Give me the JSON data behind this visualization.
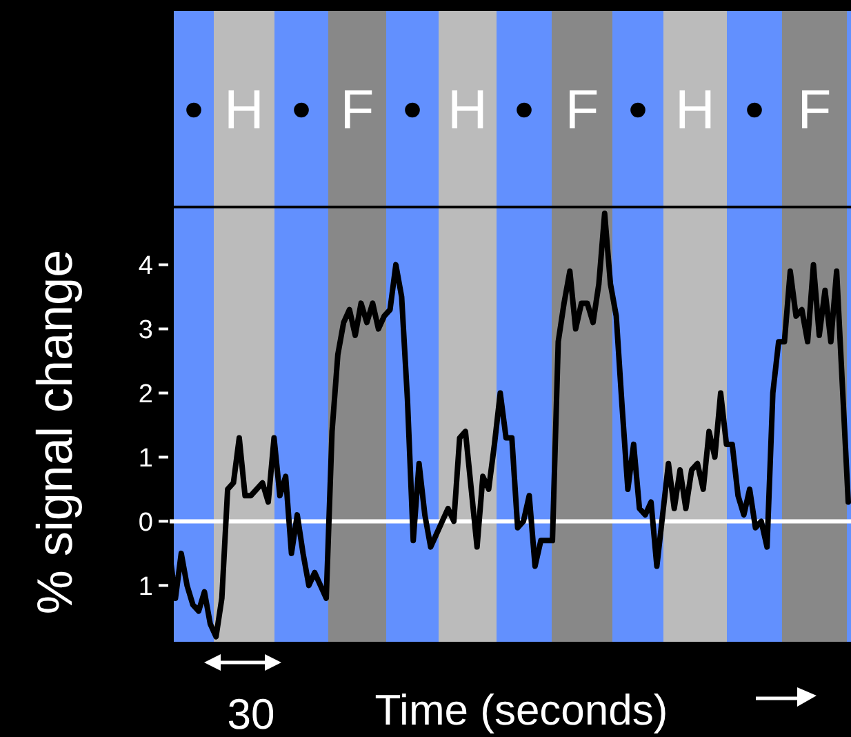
{
  "chart_data": {
    "type": "line",
    "xlabel": "Time (seconds)",
    "ylabel": "% signal change",
    "annotations": [
      "•",
      "H",
      "•",
      "F",
      "•",
      "H",
      "•",
      "F",
      "•",
      "H",
      "•",
      "F",
      "30"
    ],
    "categories": [
      null,
      null,
      null,
      null,
      null,
      null,
      null,
      null,
      null,
      null,
      null,
      null,
      null,
      null,
      null,
      null,
      null,
      null,
      null,
      null,
      null,
      null,
      null,
      null,
      null,
      null,
      null,
      null,
      null,
      null,
      null,
      null,
      null,
      null,
      null,
      null,
      null,
      null,
      null,
      null,
      null,
      null,
      null,
      null,
      null,
      null,
      null,
      null,
      null,
      null,
      null,
      null,
      null,
      null,
      null,
      null,
      null,
      null,
      null,
      null,
      null,
      null,
      null,
      null,
      null,
      null,
      null,
      null,
      null,
      null,
      null,
      null,
      null,
      null,
      null,
      null,
      null,
      null,
      null,
      null,
      null,
      null,
      null,
      null,
      null,
      null,
      null,
      null,
      null,
      null,
      null,
      null,
      null,
      null,
      null,
      null,
      null,
      null,
      null,
      null,
      null,
      null,
      null,
      null,
      null,
      null,
      null,
      null,
      null,
      null,
      null,
      null,
      null,
      null,
      null,
      null,
      null,
      null
    ],
    "ylim": [
      -1.9,
      4.9
    ],
    "yticks": [
      {
        "value": -1,
        "label": "1"
      },
      0,
      1,
      2,
      3,
      4
    ],
    "tick_labels": "y",
    "grid": false,
    "marker": "none",
    "line_style": "solid",
    "ref_lines": [
      {
        "axis": "y",
        "value": 0,
        "color": "#ffffff"
      }
    ],
    "series": [
      {
        "color": "#000000",
        "values": [
          -0.5,
          -1.2,
          -0.5,
          -1.0,
          -1.3,
          -1.4,
          -1.1,
          -1.6,
          -1.8,
          -1.2,
          0.5,
          0.6,
          1.3,
          0.4,
          0.4,
          0.5,
          0.6,
          0.3,
          1.3,
          0.4,
          0.7,
          -0.5,
          0.1,
          -0.5,
          -1.0,
          -0.8,
          -1.0,
          -1.2,
          1.4,
          2.6,
          3.1,
          3.3,
          2.9,
          3.4,
          3.1,
          3.4,
          3.0,
          3.2,
          3.3,
          4.0,
          3.5,
          1.9,
          -0.3,
          0.9,
          0.1,
          -0.4,
          -0.2,
          0.0,
          0.2,
          0.0,
          1.3,
          1.4,
          0.5,
          -0.4,
          0.7,
          0.5,
          1.2,
          2.0,
          1.3,
          1.3,
          -0.1,
          0.0,
          0.4,
          -0.7,
          -0.3,
          -0.3,
          -0.3,
          2.8,
          3.4,
          3.9,
          3.0,
          3.4,
          3.4,
          3.1,
          3.7,
          4.8,
          3.7,
          3.2,
          1.8,
          0.5,
          1.2,
          0.2,
          0.1,
          0.3,
          -0.7,
          0.1,
          0.9,
          0.2,
          0.8,
          0.2,
          0.8,
          0.9,
          0.5,
          1.4,
          1.0,
          2.0,
          1.2,
          1.2,
          0.4,
          0.1,
          0.5,
          -0.1,
          0.0,
          -0.4,
          2.0,
          2.8,
          2.8,
          3.9,
          3.2,
          3.3,
          2.8,
          4.0,
          2.9,
          3.6,
          2.8,
          3.9,
          2.1,
          0.3
        ]
      }
    ]
  }
}
